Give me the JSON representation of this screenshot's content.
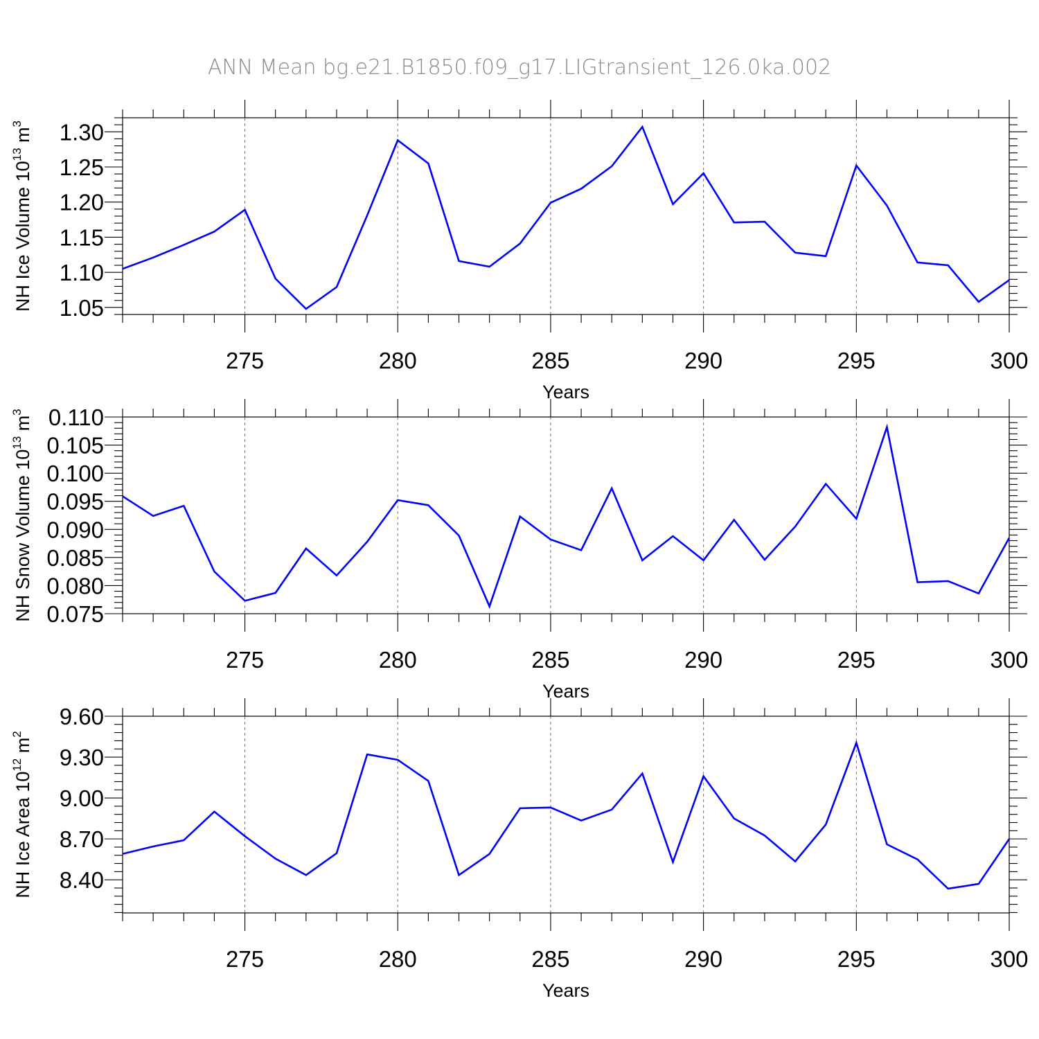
{
  "figure": {
    "title": "ANN Mean  bg.e21.B1850.f09_g17.LIGtransient_126.0ka.002"
  },
  "colors": {
    "series": "#0000ff",
    "grid": "#777777",
    "axis": "#000000"
  },
  "chart_data": [
    {
      "type": "line",
      "xlabel": "Years",
      "ylabel": {
        "text": "NH Ice Volume 10",
        "exp": "13",
        "unit": " m",
        "unit_exp": "3"
      },
      "xlim": [
        271,
        300
      ],
      "ylim": [
        1.04,
        1.32
      ],
      "xticks": [
        275,
        280,
        285,
        290,
        295,
        300
      ],
      "yticks": [
        1.05,
        1.1,
        1.15,
        1.2,
        1.25,
        1.3
      ],
      "ytick_labels": [
        "1.05",
        "1.10",
        "1.15",
        "1.20",
        "1.25",
        "1.30"
      ],
      "y_minor_step": 0.01,
      "grid": "vertical dashed at major x ticks",
      "series": [
        {
          "x": [
            271,
            272,
            273,
            274,
            275,
            276,
            277,
            278,
            279,
            280,
            281,
            282,
            283,
            284,
            285,
            286,
            287,
            288,
            289,
            290,
            291,
            292,
            293,
            294,
            295,
            296,
            297,
            298,
            299,
            300
          ],
          "values": [
            1.105,
            1.121,
            1.139,
            1.158,
            1.189,
            1.091,
            1.048,
            1.079,
            1.181,
            1.288,
            1.255,
            1.116,
            1.108,
            1.141,
            1.199,
            1.219,
            1.251,
            1.307,
            1.197,
            1.241,
            1.171,
            1.172,
            1.128,
            1.123,
            1.252,
            1.195,
            1.114,
            1.11,
            1.058,
            1.089
          ]
        }
      ]
    },
    {
      "type": "line",
      "xlabel": "Years",
      "ylabel": {
        "text": "NH Snow Volume 10",
        "exp": "13",
        "unit": " m",
        "unit_exp": "3"
      },
      "xlim": [
        271,
        300
      ],
      "ylim": [
        0.075,
        0.11
      ],
      "xticks": [
        275,
        280,
        285,
        290,
        295,
        300
      ],
      "yticks": [
        0.075,
        0.08,
        0.085,
        0.09,
        0.095,
        0.1,
        0.105,
        0.11
      ],
      "ytick_labels": [
        "0.075",
        "0.080",
        "0.085",
        "0.090",
        "0.095",
        "0.100",
        "0.105",
        "0.110"
      ],
      "y_minor_step": 0.001,
      "grid": "vertical dashed at major x ticks",
      "series": [
        {
          "x": [
            271,
            272,
            273,
            274,
            275,
            276,
            277,
            278,
            279,
            280,
            281,
            282,
            283,
            284,
            285,
            286,
            287,
            288,
            289,
            290,
            291,
            292,
            293,
            294,
            295,
            296,
            297,
            298,
            299,
            300
          ],
          "values": [
            0.0959,
            0.0924,
            0.0942,
            0.0825,
            0.0773,
            0.0787,
            0.0866,
            0.0818,
            0.0878,
            0.0952,
            0.0943,
            0.0889,
            0.0763,
            0.0923,
            0.0882,
            0.0863,
            0.0973,
            0.0845,
            0.0888,
            0.0845,
            0.0917,
            0.0846,
            0.0905,
            0.0981,
            0.0919,
            0.1082,
            0.0806,
            0.0808,
            0.0786,
            0.0885
          ]
        }
      ]
    },
    {
      "type": "line",
      "xlabel": "Years",
      "ylabel": {
        "text": "NH Ice Area 10",
        "exp": "12",
        "unit": " m",
        "unit_exp": "2"
      },
      "xlim": [
        271,
        300
      ],
      "ylim": [
        8.157,
        9.6
      ],
      "xticks": [
        275,
        280,
        285,
        290,
        295,
        300
      ],
      "yticks": [
        8.4,
        8.7,
        9.0,
        9.3,
        9.6
      ],
      "ytick_labels": [
        "8.40",
        "8.70",
        "9.00",
        "9.30",
        "9.60"
      ],
      "y_minor_step": 0.06,
      "grid": "vertical dashed at major x ticks",
      "series": [
        {
          "x": [
            271,
            272,
            273,
            274,
            275,
            276,
            277,
            278,
            279,
            280,
            281,
            282,
            283,
            284,
            285,
            286,
            287,
            288,
            289,
            290,
            291,
            292,
            293,
            294,
            295,
            296,
            297,
            298,
            299,
            300
          ],
          "values": [
            8.59,
            8.645,
            8.69,
            8.9,
            8.72,
            8.555,
            8.435,
            8.595,
            9.32,
            9.28,
            9.125,
            8.435,
            8.59,
            8.925,
            8.93,
            8.835,
            8.915,
            9.18,
            8.53,
            9.16,
            8.85,
            8.725,
            8.535,
            8.805,
            9.405,
            8.66,
            8.55,
            8.335,
            8.37,
            8.7
          ]
        }
      ]
    }
  ]
}
